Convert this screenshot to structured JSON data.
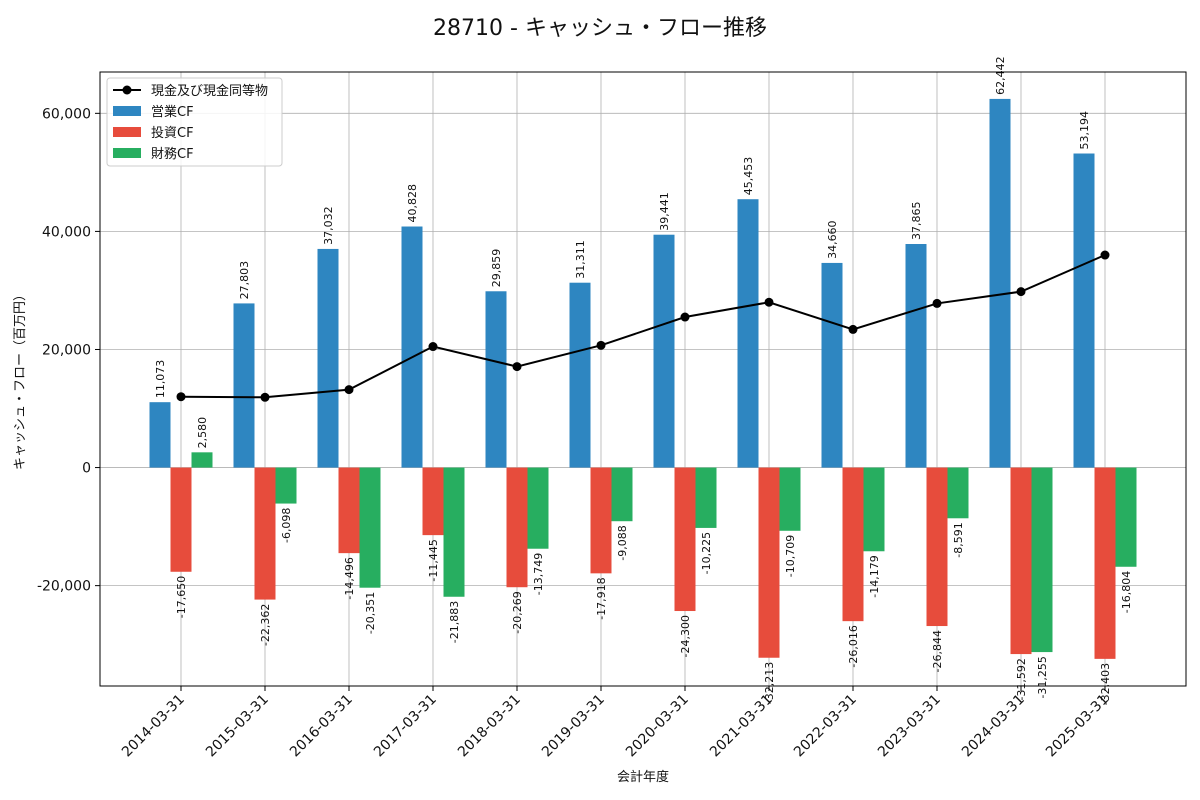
{
  "chart_data": {
    "type": "bar",
    "title": "28710 - キャッシュ・フロー推移",
    "xlabel": "会計年度",
    "ylabel": "キャッシュ・フロー（百万円）",
    "ylim": [
      -37000,
      67000
    ],
    "yticks": [
      -20000,
      0,
      20000,
      40000,
      60000
    ],
    "ytick_labels": [
      "-20,000",
      "0",
      "20,000",
      "40,000",
      "60,000"
    ],
    "grid": true,
    "legend_position": "top-left",
    "categories": [
      "2014-03-31",
      "2015-03-31",
      "2016-03-31",
      "2017-03-31",
      "2018-03-31",
      "2019-03-31",
      "2020-03-31",
      "2021-03-31",
      "2022-03-31",
      "2023-03-31",
      "2024-03-31",
      "2025-03-31"
    ],
    "series": [
      {
        "name": "営業CF",
        "kind": "bar",
        "color": "#2e86c1",
        "values": [
          11073,
          27803,
          37032,
          40828,
          29859,
          31311,
          39441,
          45453,
          34660,
          37865,
          62442,
          53194
        ],
        "labels": [
          "11,073",
          "27,803",
          "37,032",
          "40,828",
          "29,859",
          "31,311",
          "39,441",
          "45,453",
          "34,660",
          "37,865",
          "62,442",
          "53,194"
        ]
      },
      {
        "name": "投資CF",
        "kind": "bar",
        "color": "#e74c3c",
        "values": [
          -17650,
          -22362,
          -14496,
          -11445,
          -20269,
          -17918,
          -24300,
          -32213,
          -26016,
          -26844,
          -31592,
          -32403
        ],
        "labels": [
          "-17,650",
          "-22,362",
          "-14,496",
          "-11,445",
          "-20,269",
          "-17,918",
          "-24,300",
          "-32,213",
          "-26,016",
          "-26,844",
          "-31,592",
          "-32,403"
        ]
      },
      {
        "name": "財務CF",
        "kind": "bar",
        "color": "#27ae60",
        "values": [
          2580,
          -6098,
          -20351,
          -21883,
          -13749,
          -9088,
          -10225,
          -10709,
          -14179,
          -8591,
          -31255,
          -16804
        ],
        "labels": [
          "2,580",
          "-6,098",
          "-20,351",
          "-21,883",
          "-13,749",
          "-9,088",
          "-10,225",
          "-10,709",
          "-14,179",
          "-8,591",
          "-31,255",
          "-16,804"
        ]
      },
      {
        "name": "現金及び現金同等物",
        "kind": "line",
        "color": "#000000",
        "values": [
          12000,
          11900,
          13200,
          20500,
          17100,
          20700,
          25500,
          28000,
          23400,
          27800,
          29800,
          36000
        ]
      }
    ]
  }
}
